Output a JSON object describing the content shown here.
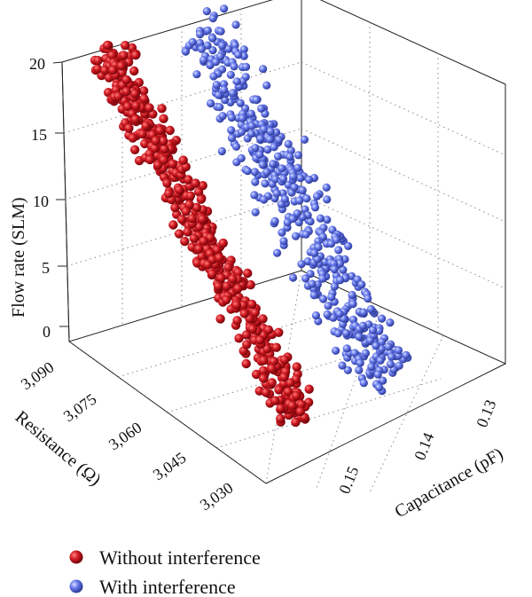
{
  "chart_data": {
    "type": "scatter",
    "projection": "3d",
    "x_axis": {
      "label": "Resistance (Ω)",
      "ticks": [
        "3,090",
        "3,075",
        "3,060",
        "3,045",
        "3,030"
      ],
      "values": [
        3090,
        3075,
        3060,
        3045,
        3030
      ],
      "range": [
        3024,
        3096
      ]
    },
    "y_axis": {
      "label": "Capacitance (pF)",
      "ticks": [
        "0.13",
        "0.14",
        "0.15"
      ],
      "values": [
        0.13,
        0.14,
        0.15
      ],
      "range": [
        0.124,
        0.158
      ]
    },
    "z_axis": {
      "label": "Flow rate (SLM)",
      "ticks": [
        "20",
        "15",
        "10",
        "5",
        "0"
      ],
      "values": [
        20,
        15,
        10,
        5,
        0
      ],
      "range": [
        -1.5,
        20
      ]
    },
    "grid": true,
    "legend_position": "bottom-left",
    "series": [
      {
        "name": "Without interference",
        "color": "#c8141e",
        "trend": {
          "flow": [
            19.5,
            0.5
          ],
          "resistance": [
            3095,
            3030
          ],
          "capacitance": [
            0.13,
            0.131
          ]
        }
      },
      {
        "name": "With interference",
        "color": "#5a6ee6",
        "trend": {
          "flow": [
            18.5,
            0.5
          ],
          "resistance": [
            3092,
            3028
          ],
          "capacitance": [
            0.142,
            0.143
          ]
        }
      }
    ]
  }
}
